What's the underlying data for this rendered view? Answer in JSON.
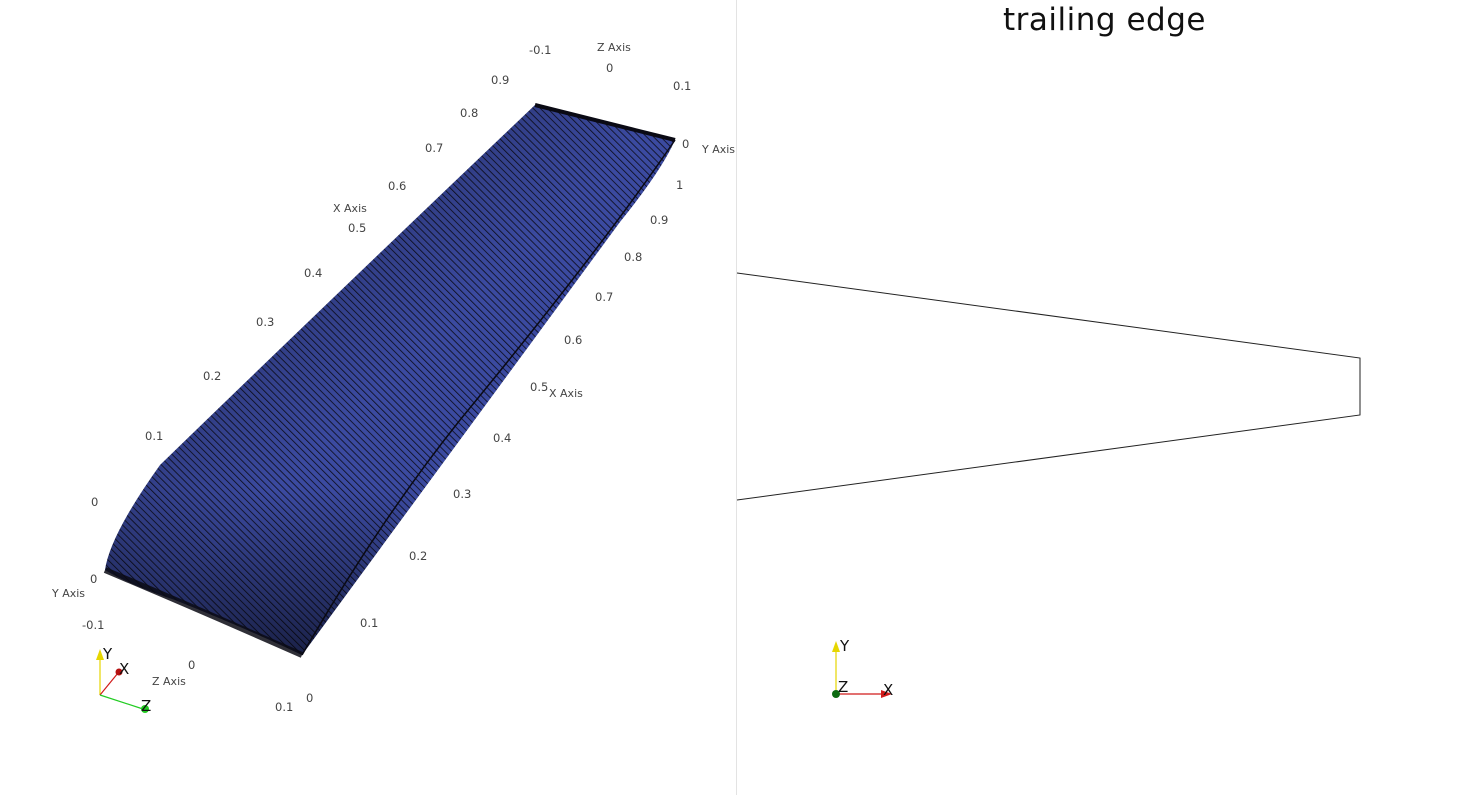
{
  "left_view": {
    "surface_color": "#3b4aa0",
    "edge_color": "#0a0a14",
    "ticks": {
      "x_left": [
        "0.9",
        "0.8",
        "0.7",
        "0.6",
        "0.5",
        "0.4",
        "0.3",
        "0.2",
        "0.1",
        "0"
      ],
      "x_right": [
        "1",
        "0.9",
        "0.8",
        "0.7",
        "0.6",
        "0.5",
        "0.4",
        "0.3",
        "0.2",
        "0.1"
      ],
      "y_top": [
        "0",
        "0.1"
      ],
      "y_bottom": [
        "0",
        "-0.1"
      ],
      "z_top": [
        "-0.1",
        "0"
      ],
      "z_bottom": [
        "0",
        "0.1",
        "0"
      ]
    },
    "axis_labels": {
      "x_left": "X Axis",
      "x_right": "X Axis",
      "y_top": "Y Axis",
      "y_bottom": "Y Axis",
      "z_top": "Z Axis",
      "z_bottom": "Z Axis"
    },
    "orientation": {
      "x": "X",
      "y": "Y",
      "z": "Z"
    }
  },
  "right_view": {
    "title": "trailing edge",
    "outline_color": "#222222",
    "orientation": {
      "x": "X",
      "y": "Y",
      "z": "Z"
    }
  },
  "colors": {
    "axis_x": "#d11a1a",
    "axis_y": "#e6d600",
    "axis_z": "#22cc22",
    "background": "#ffffff"
  }
}
